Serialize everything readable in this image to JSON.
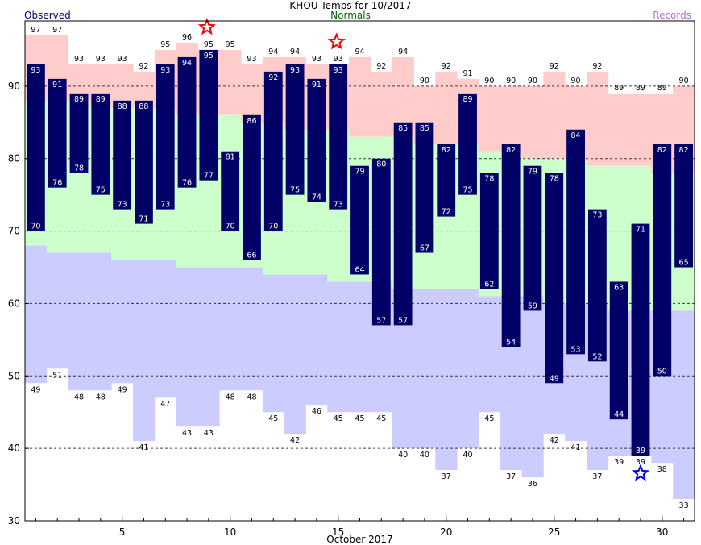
{
  "chart_data": {
    "type": "bar",
    "title": "KHOU Temps for  10/2017",
    "legend": {
      "observed": "Observed",
      "normals": "Normals",
      "records": "Records",
      "placement": "top"
    },
    "xlabel": "October 2017",
    "x_ticks": [
      5,
      10,
      15,
      20,
      25,
      30
    ],
    "y_ticks": [
      30,
      40,
      50,
      60,
      70,
      80,
      90
    ],
    "ylim": [
      30,
      99
    ],
    "xlim": [
      0.5,
      31.5
    ],
    "days": [
      1,
      2,
      3,
      4,
      5,
      6,
      7,
      8,
      9,
      10,
      11,
      12,
      13,
      14,
      15,
      16,
      17,
      18,
      19,
      20,
      21,
      22,
      23,
      24,
      25,
      26,
      27,
      28,
      29,
      30,
      31
    ],
    "observed_high": [
      93,
      91,
      89,
      89,
      88,
      88,
      93,
      94,
      95,
      81,
      86,
      92,
      93,
      91,
      93,
      79,
      80,
      85,
      85,
      82,
      89,
      78,
      82,
      79,
      78,
      84,
      73,
      63,
      71,
      82,
      82
    ],
    "observed_low": [
      70,
      76,
      78,
      75,
      73,
      71,
      73,
      76,
      77,
      70,
      66,
      70,
      75,
      74,
      73,
      64,
      57,
      57,
      67,
      72,
      75,
      62,
      54,
      59,
      49,
      53,
      52,
      44,
      39,
      50,
      65
    ],
    "normal_high": [
      88,
      88,
      88,
      87,
      87,
      87,
      87,
      86,
      86,
      86,
      85,
      85,
      84,
      84,
      84,
      83,
      83,
      83,
      82,
      82,
      82,
      81,
      81,
      80,
      80,
      80,
      79,
      79,
      79,
      78,
      78
    ],
    "normal_low": [
      68,
      67,
      67,
      67,
      66,
      66,
      66,
      65,
      65,
      65,
      65,
      64,
      64,
      64,
      63,
      63,
      63,
      62,
      62,
      62,
      62,
      61,
      61,
      61,
      60,
      60,
      60,
      59,
      59,
      59,
      59
    ],
    "record_high": [
      97,
      97,
      93,
      93,
      93,
      92,
      95,
      96,
      95,
      95,
      93,
      94,
      94,
      93,
      93,
      94,
      92,
      94,
      90,
      92,
      91,
      90,
      90,
      90,
      92,
      90,
      92,
      89,
      89,
      89,
      90
    ],
    "record_low": [
      49,
      51,
      48,
      48,
      49,
      41,
      47,
      43,
      43,
      48,
      48,
      45,
      42,
      46,
      45,
      45,
      45,
      40,
      40,
      37,
      40,
      45,
      37,
      36,
      42,
      41,
      37,
      39,
      39,
      38,
      33
    ],
    "record_high_markers": [
      9,
      15
    ],
    "record_low_markers": [
      29
    ],
    "grid": "dashed horizontal at 40, 50, 60, 70, 80, 90",
    "colors": {
      "observed": "#000066",
      "normal": "#ccffcc",
      "record_high": "#ffcccc",
      "record_low": "#ccccff",
      "record_star_high": "#ff0000",
      "record_star_low": "#0000ff",
      "legend_observed": "#000080",
      "legend_normals": "#006600",
      "legend_records": "#b070d0"
    }
  }
}
